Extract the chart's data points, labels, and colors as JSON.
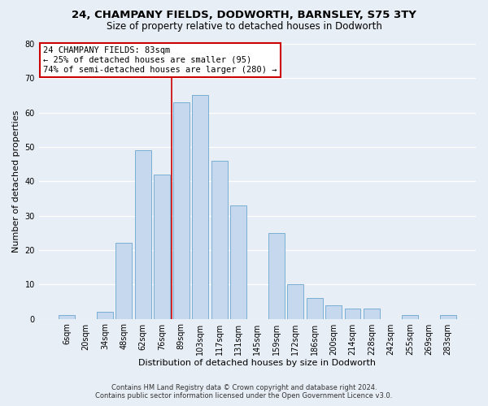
{
  "title": "24, CHAMPANY FIELDS, DODWORTH, BARNSLEY, S75 3TY",
  "subtitle": "Size of property relative to detached houses in Dodworth",
  "xlabel": "Distribution of detached houses by size in Dodworth",
  "ylabel": "Number of detached properties",
  "bar_labels": [
    "6sqm",
    "20sqm",
    "34sqm",
    "48sqm",
    "62sqm",
    "76sqm",
    "89sqm",
    "103sqm",
    "117sqm",
    "131sqm",
    "145sqm",
    "159sqm",
    "172sqm",
    "186sqm",
    "200sqm",
    "214sqm",
    "228sqm",
    "242sqm",
    "255sqm",
    "269sqm",
    "283sqm"
  ],
  "bar_heights": [
    1,
    0,
    2,
    22,
    49,
    42,
    63,
    65,
    46,
    33,
    0,
    25,
    10,
    6,
    4,
    3,
    3,
    0,
    1,
    0,
    1
  ],
  "bar_color": "#c5d8ee",
  "bar_edge_color": "#7aaed4",
  "vline_x_idx": 6,
  "vline_color": "#cc0000",
  "annotation_title": "24 CHAMPANY FIELDS: 83sqm",
  "annotation_line1": "← 25% of detached houses are smaller (95)",
  "annotation_line2": "74% of semi-detached houses are larger (280) →",
  "annotation_box_color": "#ffffff",
  "annotation_box_edge": "#cc0000",
  "ylim": [
    0,
    80
  ],
  "yticks": [
    0,
    10,
    20,
    30,
    40,
    50,
    60,
    70,
    80
  ],
  "footer1": "Contains HM Land Registry data © Crown copyright and database right 2024.",
  "footer2": "Contains public sector information licensed under the Open Government Licence v3.0.",
  "background_color": "#e8eef5",
  "title_fontsize": 9.5,
  "subtitle_fontsize": 8.5,
  "tick_fontsize": 7,
  "label_fontsize": 8,
  "annotation_fontsize": 7.5,
  "footer_fontsize": 6
}
